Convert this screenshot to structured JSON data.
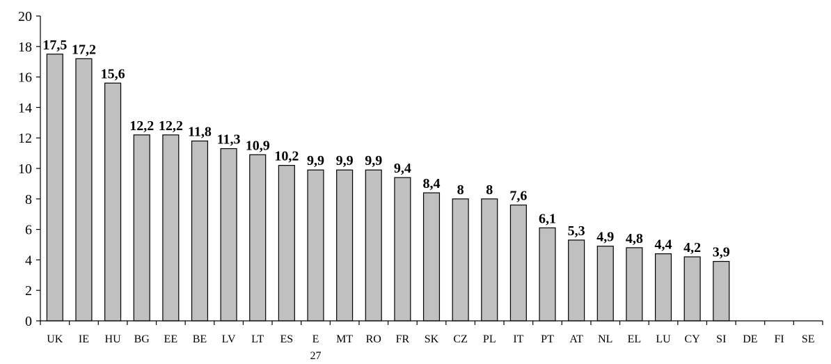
{
  "chart_data": {
    "type": "bar",
    "title": "",
    "xlabel": "",
    "ylabel": "",
    "ylim": [
      0,
      20
    ],
    "yticks": [
      0,
      2,
      4,
      6,
      8,
      10,
      12,
      14,
      16,
      18,
      20
    ],
    "grid": false,
    "legend": "none",
    "bar_color": "#c0c0c0",
    "categories": [
      "UK",
      "IE",
      "HU",
      "BG",
      "EE",
      "BE",
      "LV",
      "LT",
      "ES",
      "E",
      "MT",
      "RO",
      "FR",
      "SK",
      "CZ",
      "PL",
      "IT",
      "PT",
      "AT",
      "NL",
      "EL",
      "LU",
      "CY",
      "SI",
      "DE",
      "FI",
      "SE"
    ],
    "category_sublabels": {
      "9": "27"
    },
    "values": [
      17.5,
      17.2,
      15.6,
      12.2,
      12.2,
      11.8,
      11.3,
      10.9,
      10.2,
      9.9,
      9.9,
      9.9,
      9.4,
      8.4,
      8,
      8,
      7.6,
      6.1,
      5.3,
      4.9,
      4.8,
      4.4,
      4.2,
      3.9,
      null,
      null,
      null
    ],
    "data_labels": [
      "17,5",
      "17,2",
      "15,6",
      "12,2",
      "12,2",
      "11,8",
      "11,3",
      "10,9",
      "10,2",
      "9,9",
      "9,9",
      "9,9",
      "9,4",
      "8,4",
      "8",
      "8",
      "7,6",
      "6,1",
      "5,3",
      "4,9",
      "4,8",
      "4,4",
      "4,2",
      "3,9",
      "",
      "",
      ""
    ]
  }
}
